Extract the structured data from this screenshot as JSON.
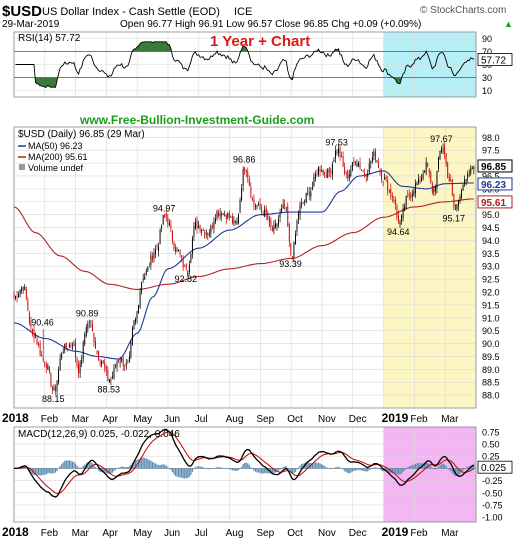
{
  "header": {
    "symbol": "$USD",
    "name": "US Dollar Index - Cash Settle (EOD)",
    "exchange": "ICE",
    "watermark": "© StockCharts.com",
    "date": "29-Mar-2019",
    "ohlc": "Open 96.77  High 96.91  Low 96.57  Close 96.85  Chg +0.09 (+0.09%)",
    "ohlc_arrow": "▲"
  },
  "annotation_title": "1 Year + Chart",
  "site_text": "www.Free-Bullion-Investment-Guide.com",
  "colors": {
    "price_up": "#000000",
    "price_down": "#cc0000",
    "ma50": "#1f3a93",
    "ma200": "#b22222",
    "rsi_line": "#000000",
    "rsi_fill": "#3a7a3a",
    "macd_line": "#000000",
    "macd_signal": "#cc0000",
    "macd_hist": "#5a8fb5",
    "highlight_blue": "#b6f0f6",
    "highlight_yellow": "#fbf6c4",
    "highlight_pink": "#f3b5f3",
    "annotation_red": "#e01818",
    "site_green": "#1a9e1a",
    "label_box_black": "#000000",
    "label_box_blue": "#1f3a93",
    "label_box_red": "#b22222"
  },
  "chart_data": [
    {
      "type": "line",
      "name": "RSI panel",
      "legend": "RSI(14) 57.72",
      "ylim": [
        0,
        100
      ],
      "ticks": [
        "90",
        "70",
        "50",
        "30",
        "10"
      ],
      "tick_values": [
        90,
        70,
        50,
        30,
        10
      ],
      "overbought": 70,
      "oversold": 30,
      "last_value": 57.72,
      "last_label": "57.72"
    },
    {
      "type": "line",
      "name": "Price panel",
      "legend": [
        "$USD (Daily) 96.85 (29 Mar)",
        "MA(50) 96.23",
        "MA(200) 95.61",
        "Volume undef"
      ],
      "ylim": [
        87.5,
        98.4
      ],
      "ticks": [
        "98.0",
        "97.5",
        "97.0",
        "96.5",
        "96.0",
        "95.5",
        "95.0",
        "94.5",
        "94.0",
        "93.5",
        "93.0",
        "92.5",
        "92.0",
        "91.5",
        "91.0",
        "90.5",
        "90.0",
        "89.5",
        "89.0",
        "88.5",
        "88.0"
      ],
      "tick_values": [
        98.0,
        97.5,
        97.0,
        96.5,
        96.0,
        95.5,
        95.0,
        94.5,
        94.0,
        93.5,
        93.0,
        92.5,
        92.0,
        91.5,
        91.0,
        90.5,
        90.0,
        89.5,
        89.0,
        88.5,
        88.0
      ],
      "x_labels": [
        "2018",
        "Feb",
        "Mar",
        "Apr",
        "May",
        "Jun",
        "Jul",
        "Aug",
        "Sep",
        "Oct",
        "Nov",
        "Dec",
        "2019",
        "Feb",
        "Mar"
      ],
      "x_label_months": [
        0,
        1,
        2,
        3,
        4,
        5,
        6,
        7,
        8,
        9,
        10,
        11,
        12,
        13,
        14
      ],
      "anchors": [
        [
          0,
          91.8
        ],
        [
          0.3,
          92.2
        ],
        [
          0.6,
          90.4
        ],
        [
          1.0,
          89.3
        ],
        [
          1.3,
          88.15
        ],
        [
          1.6,
          89.8
        ],
        [
          1.9,
          90.0
        ],
        [
          2.1,
          89.0
        ],
        [
          2.4,
          90.89
        ],
        [
          2.8,
          89.4
        ],
        [
          3.1,
          88.53
        ],
        [
          3.4,
          89.4
        ],
        [
          3.7,
          89.1
        ],
        [
          3.9,
          90.8
        ],
        [
          4.2,
          92.6
        ],
        [
          4.6,
          93.6
        ],
        [
          4.9,
          94.97
        ],
        [
          5.3,
          93.6
        ],
        [
          5.6,
          92.82
        ],
        [
          5.9,
          94.6
        ],
        [
          6.3,
          94.3
        ],
        [
          6.6,
          95.1
        ],
        [
          6.9,
          95.0
        ],
        [
          7.2,
          94.6
        ],
        [
          7.5,
          96.86
        ],
        [
          7.8,
          95.4
        ],
        [
          8.1,
          95.1
        ],
        [
          8.4,
          94.4
        ],
        [
          8.8,
          95.3
        ],
        [
          9.0,
          93.39
        ],
        [
          9.3,
          95.3
        ],
        [
          9.6,
          95.9
        ],
        [
          9.9,
          96.8
        ],
        [
          10.2,
          96.6
        ],
        [
          10.5,
          97.53
        ],
        [
          10.8,
          96.5
        ],
        [
          11.1,
          97.1
        ],
        [
          11.4,
          96.6
        ],
        [
          11.7,
          97.3
        ],
        [
          12.0,
          96.4
        ],
        [
          12.3,
          95.7
        ],
        [
          12.5,
          94.64
        ],
        [
          12.8,
          95.7
        ],
        [
          13.1,
          96.2
        ],
        [
          13.4,
          96.9
        ],
        [
          13.6,
          95.9
        ],
        [
          13.9,
          97.67
        ],
        [
          14.15,
          96.3
        ],
        [
          14.3,
          95.17
        ],
        [
          14.6,
          96.2
        ],
        [
          14.93,
          96.85
        ]
      ],
      "ma50_anchors": [
        [
          0,
          90.8
        ],
        [
          1,
          90.2
        ],
        [
          2,
          89.7
        ],
        [
          2.7,
          89.5
        ],
        [
          3.4,
          89.4
        ],
        [
          4.0,
          90.4
        ],
        [
          4.5,
          91.8
        ],
        [
          5.0,
          92.9
        ],
        [
          6.0,
          93.7
        ],
        [
          7.0,
          94.4
        ],
        [
          8.0,
          95.0
        ],
        [
          9.0,
          95.1
        ],
        [
          10.0,
          95.1
        ],
        [
          10.6,
          95.9
        ],
        [
          11.2,
          96.5
        ],
        [
          12.0,
          96.7
        ],
        [
          12.6,
          96.1
        ],
        [
          13.4,
          96.0
        ],
        [
          14.0,
          96.2
        ],
        [
          14.93,
          96.23
        ]
      ],
      "ma200_anchors": [
        [
          0,
          95.3
        ],
        [
          0.7,
          94.3
        ],
        [
          1.5,
          93.4
        ],
        [
          2.3,
          92.8
        ],
        [
          3.1,
          92.3
        ],
        [
          4.0,
          92.1
        ],
        [
          5.0,
          92.3
        ],
        [
          6.0,
          92.6
        ],
        [
          7.0,
          92.9
        ],
        [
          8.0,
          93.1
        ],
        [
          9.0,
          93.3
        ],
        [
          10.0,
          93.8
        ],
        [
          11.0,
          94.3
        ],
        [
          12.0,
          94.9
        ],
        [
          13.0,
          95.3
        ],
        [
          14.0,
          95.5
        ],
        [
          14.93,
          95.61
        ]
      ],
      "annotations": [
        {
          "label": "88.15",
          "x": 1.3,
          "y": 88.15,
          "pos": "below"
        },
        {
          "label": "90.46",
          "x": 0.95,
          "y": 90.55,
          "pos": "above"
        },
        {
          "label": "90.89",
          "x": 2.4,
          "y": 90.89,
          "pos": "above"
        },
        {
          "label": "88.53",
          "x": 3.1,
          "y": 88.53,
          "pos": "below"
        },
        {
          "label": "94.97",
          "x": 4.9,
          "y": 94.97,
          "pos": "above"
        },
        {
          "label": "92.82",
          "x": 5.6,
          "y": 92.82,
          "pos": "below"
        },
        {
          "label": "96.86",
          "x": 7.5,
          "y": 96.86,
          "pos": "above"
        },
        {
          "label": "93.39",
          "x": 9.0,
          "y": 93.39,
          "pos": "below"
        },
        {
          "label": "97.53",
          "x": 10.5,
          "y": 97.53,
          "pos": "above"
        },
        {
          "label": "94.64",
          "x": 12.5,
          "y": 94.64,
          "pos": "below"
        },
        {
          "label": "97.67",
          "x": 13.9,
          "y": 97.67,
          "pos": "above"
        },
        {
          "label": "95.17",
          "x": 14.3,
          "y": 95.17,
          "pos": "below"
        }
      ],
      "value_boxes": [
        {
          "label": "96.85",
          "value": 96.85,
          "style": "black"
        },
        {
          "label": "96.23",
          "value": 96.23,
          "style": "blue"
        },
        {
          "label": "95.61",
          "value": 95.61,
          "style": "red"
        }
      ]
    },
    {
      "type": "line",
      "name": "MACD panel",
      "legend": "MACD(12,26,9) 0.025, -0.022, 0.046",
      "ylim": [
        -1.1,
        0.85
      ],
      "ticks": [
        "0.75",
        "0.50",
        "0.25",
        "0.00",
        "-0.25",
        "-0.50",
        "-0.75",
        "-1.00"
      ],
      "tick_values": [
        0.75,
        0.5,
        0.25,
        0.0,
        -0.25,
        -0.5,
        -0.75,
        -1.0
      ],
      "last_label": "0.025",
      "last_value": 0.025,
      "x_labels": [
        "2018",
        "Feb",
        "Mar",
        "Apr",
        "May",
        "Jun",
        "Jul",
        "Aug",
        "Sep",
        "Oct",
        "Nov",
        "Dec",
        "2019",
        "Feb",
        "Mar"
      ]
    }
  ]
}
